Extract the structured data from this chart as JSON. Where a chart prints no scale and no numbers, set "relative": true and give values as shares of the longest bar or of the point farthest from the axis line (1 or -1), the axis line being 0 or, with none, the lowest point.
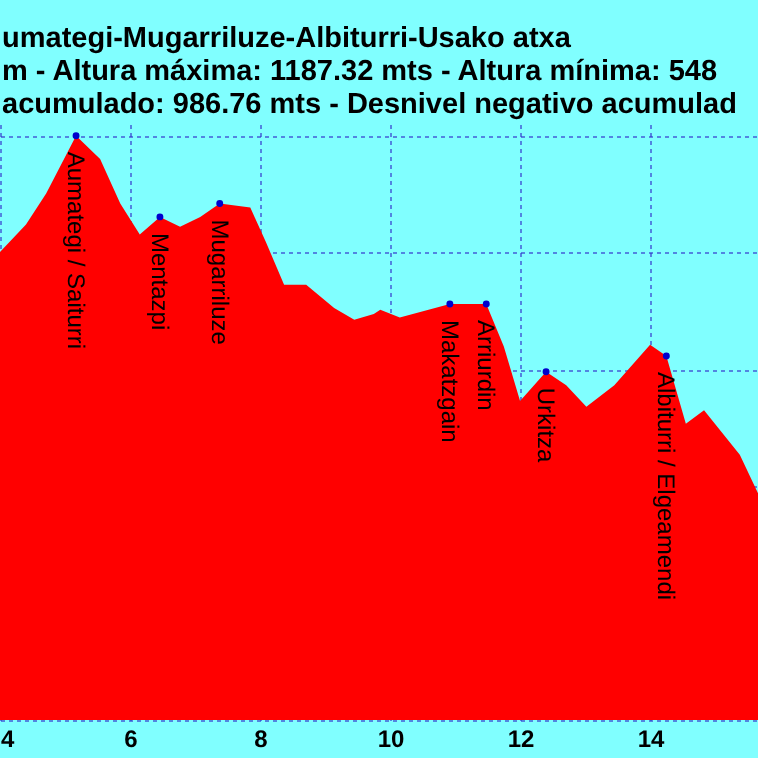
{
  "chart_data": {
    "type": "area",
    "title": "umategi-Mugarriluze-Albiturri-Usako atxa",
    "subtitle": "m - Altura máxima: 1187.32 mts - Altura mínima: 548\nacumulado: 986.76 mts - Desnivel negativo acumulad",
    "relative": true,
    "xlim": [
      4,
      15.66
    ],
    "xticks": [
      4,
      6,
      8,
      10,
      12,
      14
    ],
    "grid": true,
    "series": [
      {
        "color": "#ff0000",
        "x": [
          4.0,
          4.4,
          4.71,
          5.17,
          5.54,
          5.85,
          6.15,
          6.46,
          6.77,
          7.08,
          7.38,
          7.85,
          8.09,
          8.37,
          8.71,
          9.14,
          9.45,
          9.75,
          9.85,
          10.15,
          10.92,
          11.48,
          11.75,
          12.0,
          12.4,
          12.71,
          13.02,
          13.45,
          14.0,
          14.25,
          14.55,
          14.83,
          15.38,
          15.66
        ],
        "values": [
          0.801,
          0.848,
          0.901,
          1.0,
          0.96,
          0.884,
          0.831,
          0.861,
          0.844,
          0.861,
          0.884,
          0.877,
          0.818,
          0.745,
          0.745,
          0.705,
          0.685,
          0.695,
          0.702,
          0.689,
          0.712,
          0.712,
          0.639,
          0.546,
          0.596,
          0.573,
          0.536,
          0.573,
          0.642,
          0.623,
          0.507,
          0.53,
          0.454,
          0.388
        ]
      }
    ],
    "annotations": [
      {
        "text": "Aumategi / Saiturri",
        "x": 5.17,
        "y": 1.0
      },
      {
        "text": "Mentazpi",
        "x": 6.46,
        "y": 0.861
      },
      {
        "text": "Mugarriluze",
        "x": 7.38,
        "y": 0.884
      },
      {
        "text": "Makatzgain",
        "x": 10.92,
        "y": 0.712
      },
      {
        "text": "Arriurdin",
        "x": 11.48,
        "y": 0.712
      },
      {
        "text": "Urkitza",
        "x": 12.4,
        "y": 0.596
      },
      {
        "text": "Albiturri / Elgeamendi",
        "x": 14.25,
        "y": 0.623
      }
    ]
  }
}
